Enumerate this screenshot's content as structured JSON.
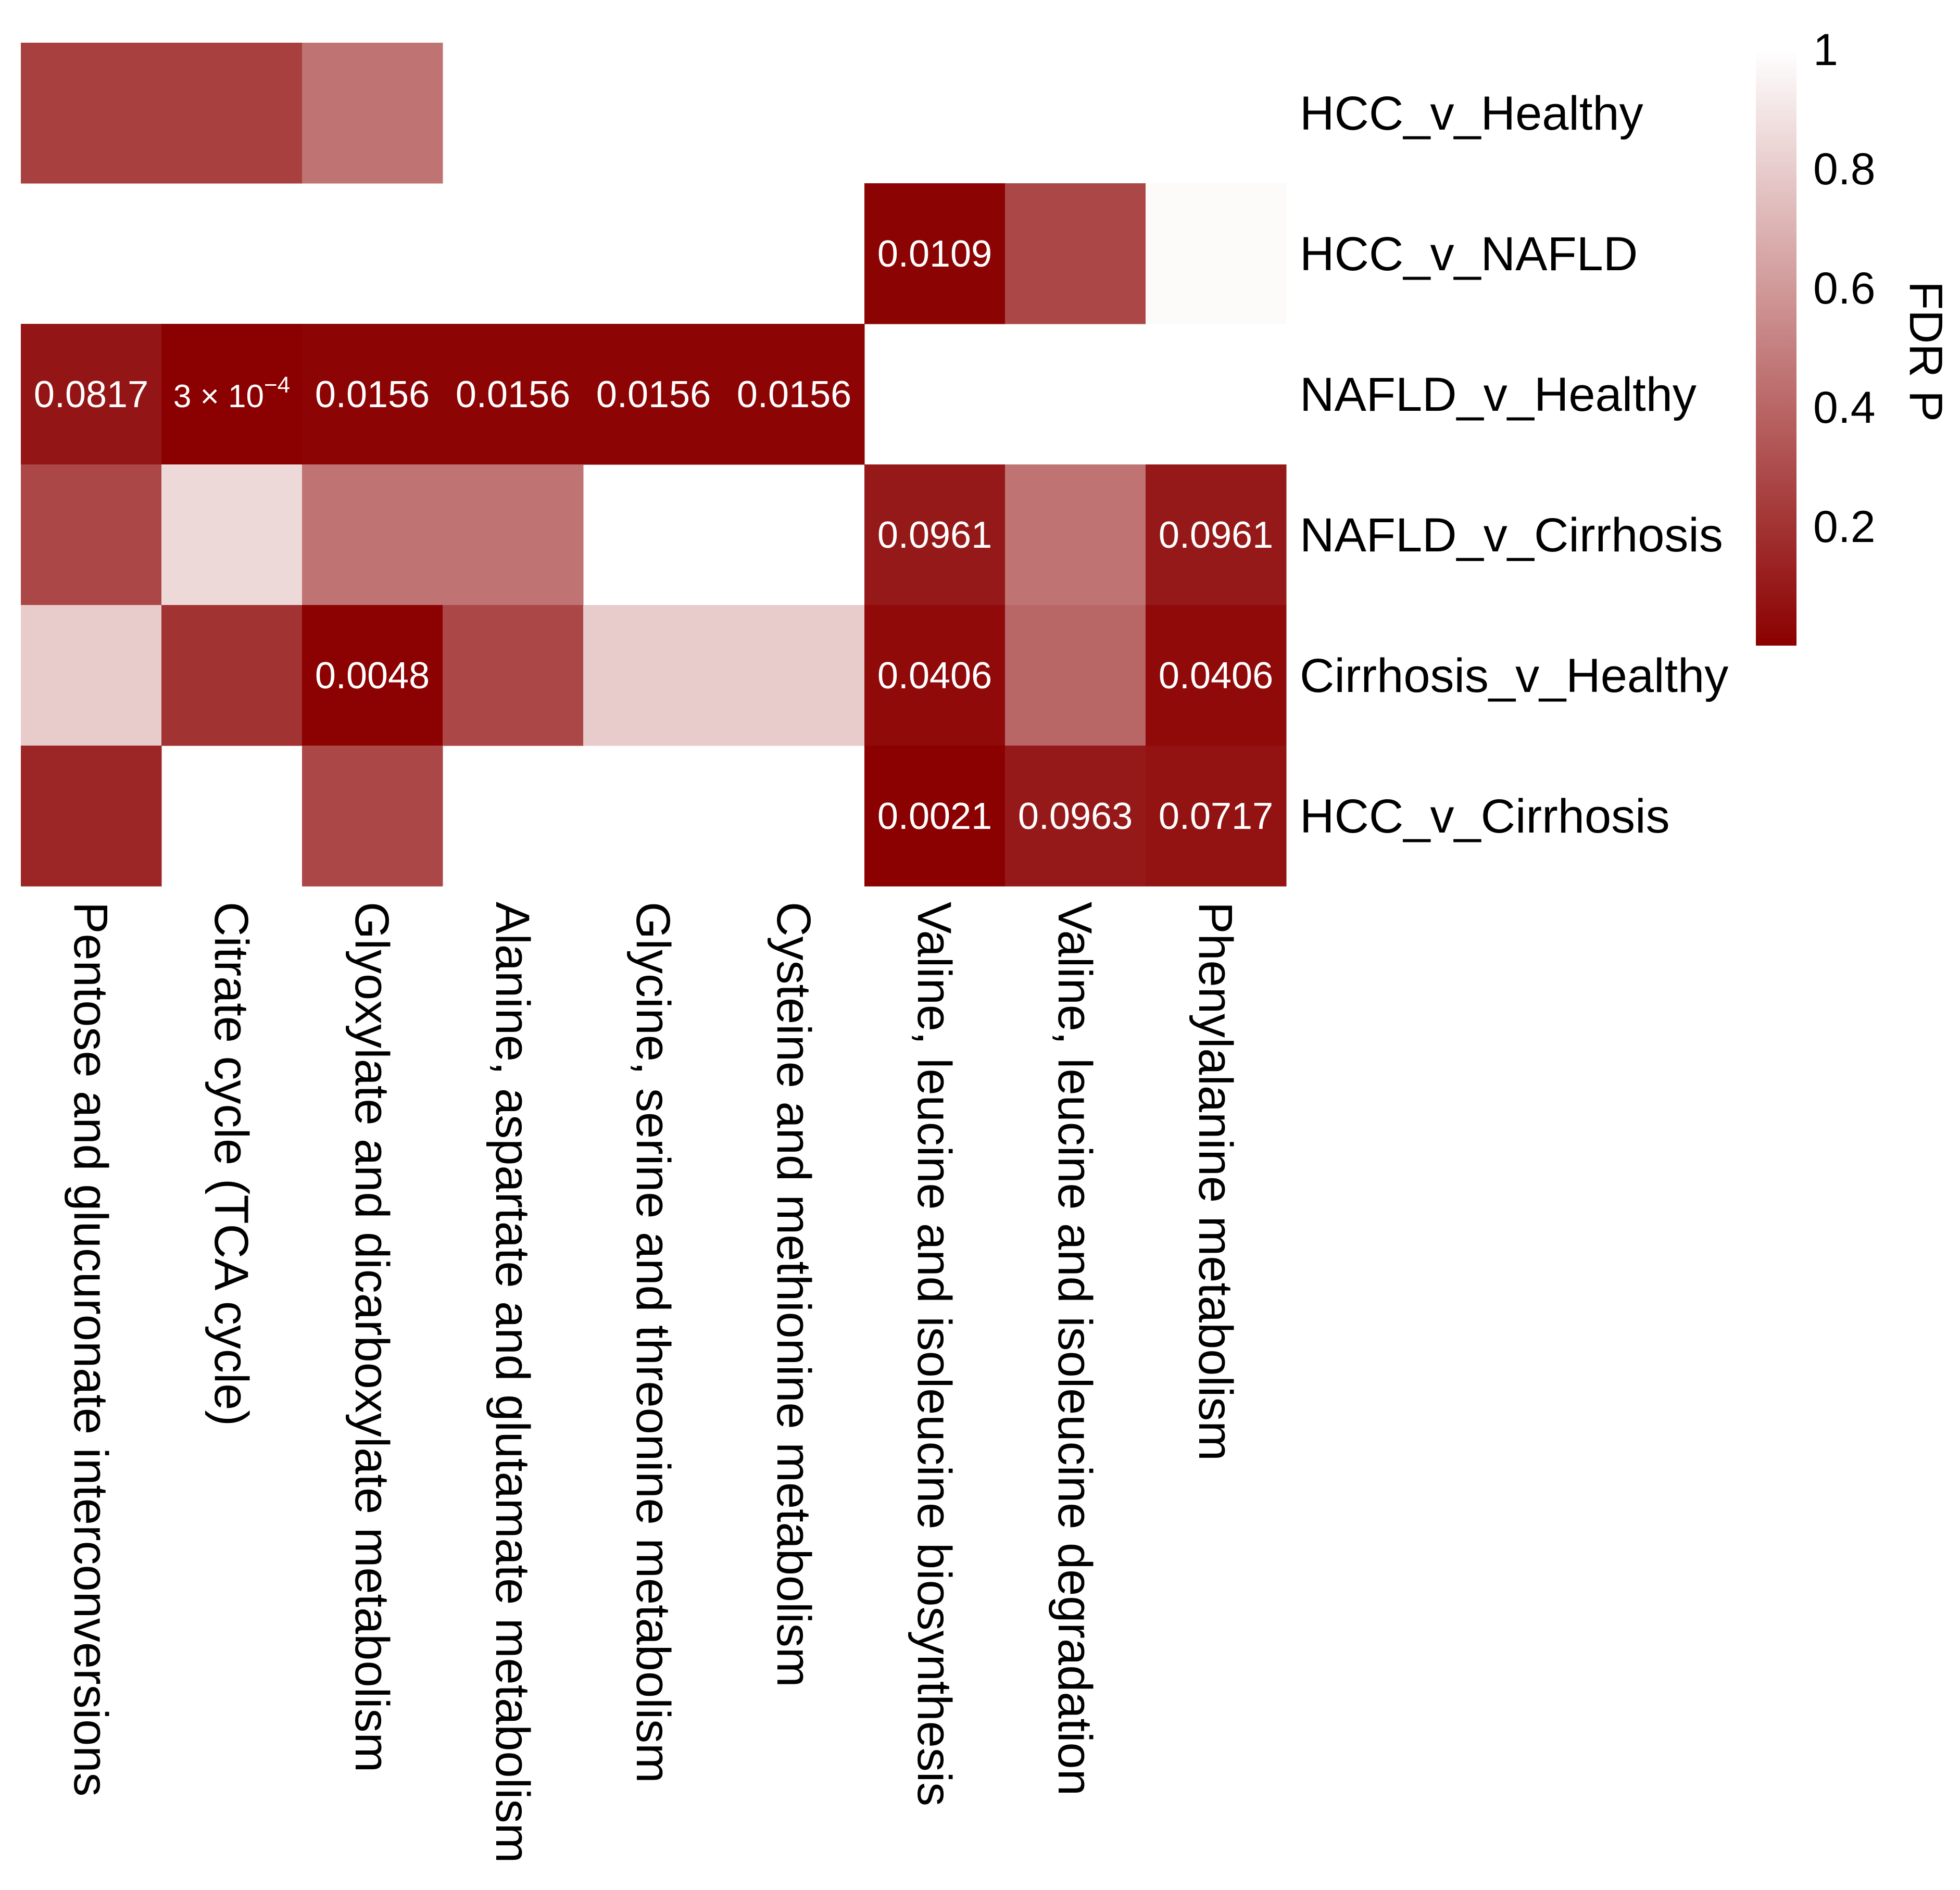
{
  "chart_data": {
    "type": "heatmap",
    "title": "",
    "rows": [
      "HCC_v_Healthy",
      "HCC_v_NAFLD",
      "NAFLD_v_Healthy",
      "NAFLD_v_Cirrhosis",
      "Cirrhosis_v_Healthy",
      "HCC_v_Cirrhosis"
    ],
    "columns": [
      "Pentose and glucuronate interconversions",
      "Citrate cycle (TCA cycle)",
      "Glyoxylate and dicarboxylate metabolism",
      "Alanine, aspartate and glutamate metabolism",
      "Glycine, serine and threonine metabolism",
      "Cysteine and methionine metabolism",
      "Valine, leucine and isoleucine biosynthesis",
      "Valine, leucine and isoleucine degradation",
      "Phenylalanine metabolism"
    ],
    "values": [
      [
        0.25,
        0.25,
        0.45,
        null,
        null,
        null,
        null,
        null,
        null
      ],
      [
        null,
        null,
        null,
        null,
        null,
        null,
        0.0109,
        0.28,
        0.98
      ],
      [
        0.0817,
        0.0003,
        0.0156,
        0.0156,
        0.0156,
        0.0156,
        null,
        null,
        null
      ],
      [
        0.28,
        0.85,
        0.45,
        0.45,
        null,
        null,
        0.0961,
        0.45,
        0.0961
      ],
      [
        0.8,
        0.2,
        0.0048,
        0.28,
        0.8,
        0.8,
        0.0406,
        0.4,
        0.0406
      ],
      [
        0.15,
        null,
        0.28,
        null,
        null,
        null,
        0.0021,
        0.0963,
        0.0717
      ]
    ],
    "cell_labels": [
      [
        "",
        "",
        "",
        "",
        "",
        "",
        "",
        "",
        ""
      ],
      [
        "",
        "",
        "",
        "",
        "",
        "",
        "0.0109",
        "",
        ""
      ],
      [
        "0.0817",
        "3 × 10",
        "0.0156",
        "0.0156",
        "0.0156",
        "0.0156",
        "",
        "",
        ""
      ],
      [
        "",
        "",
        "",
        "",
        "",
        "",
        "0.0961",
        "",
        "0.0961"
      ],
      [
        "",
        "",
        "0.0048",
        "",
        "",
        "",
        "0.0406",
        "",
        "0.0406"
      ],
      [
        "",
        "",
        "",
        "",
        "",
        "",
        "0.0021",
        "0.0963",
        "0.0717"
      ]
    ],
    "label_superscript": "−4",
    "legend": {
      "title": "FDR P",
      "ticks": [
        "1",
        "0.8",
        "0.6",
        "0.4",
        "0.2"
      ],
      "tick_values": [
        1,
        0.8,
        0.6,
        0.4,
        0.2
      ],
      "range": [
        0,
        1
      ],
      "placement": "right"
    },
    "colors": {
      "low": "#8b0000",
      "high": "#ffffff",
      "label_text": "#ffffff",
      "axis_text": "#000000"
    }
  }
}
